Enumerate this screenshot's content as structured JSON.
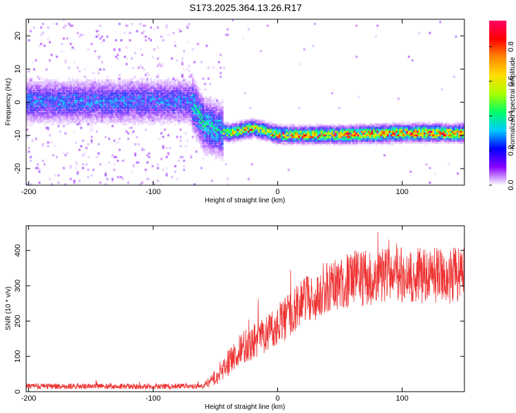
{
  "title": "S173.2025.364.13.26.R17",
  "chart_data": [
    {
      "type": "heatmap",
      "xlabel": "Height of straight line (km)",
      "ylabel": "Frequency (Hz)",
      "xlim": [
        -202,
        150
      ],
      "ylim": [
        -25,
        25
      ],
      "xticks": [
        -200,
        -100,
        0,
        100
      ],
      "yticks": [
        -20,
        -10,
        0,
        10,
        20
      ],
      "colorbar": {
        "label": "Normalized spectral amplitude",
        "range": [
          0,
          0.95
        ],
        "ticks": [
          0.0,
          0.2,
          0.4,
          0.6,
          0.8
        ],
        "colors": [
          "#ffffff",
          "#8800ff",
          "#0000ff",
          "#00ccff",
          "#00ff66",
          "#aaff00",
          "#ffdd00",
          "#ff8800",
          "#ff0000",
          "#ff0066"
        ]
      },
      "ridge": [
        {
          "x": -202,
          "y": 0
        },
        {
          "x": -70,
          "y": 0
        },
        {
          "x": -60,
          "y": -7
        },
        {
          "x": -40,
          "y": -9.5
        },
        {
          "x": -20,
          "y": -8
        },
        {
          "x": 0,
          "y": -10
        },
        {
          "x": 50,
          "y": -10
        },
        {
          "x": 100,
          "y": -9.5
        },
        {
          "x": 150,
          "y": -9.5
        }
      ]
    },
    {
      "type": "line",
      "xlabel": "Height of straight line (km)",
      "ylabel": "SNR (10 * v/v)",
      "xlim": [
        -202,
        150
      ],
      "ylim": [
        0,
        470
      ],
      "xticks": [
        -200,
        -100,
        0,
        100
      ],
      "yticks": [
        0,
        100,
        200,
        300,
        400
      ],
      "color": "#ee3333",
      "trend": [
        {
          "x": -202,
          "y": 15
        },
        {
          "x": -60,
          "y": 15
        },
        {
          "x": -50,
          "y": 40
        },
        {
          "x": -40,
          "y": 80
        },
        {
          "x": -30,
          "y": 120
        },
        {
          "x": -10,
          "y": 160
        },
        {
          "x": 0,
          "y": 190
        },
        {
          "x": 20,
          "y": 250
        },
        {
          "x": 40,
          "y": 300
        },
        {
          "x": 60,
          "y": 320
        },
        {
          "x": 80,
          "y": 325
        },
        {
          "x": 100,
          "y": 330
        },
        {
          "x": 150,
          "y": 330
        }
      ],
      "noise": [
        {
          "x": -202,
          "y": 8
        },
        {
          "x": -60,
          "y": 8
        },
        {
          "x": -40,
          "y": 40
        },
        {
          "x": -20,
          "y": 50
        },
        {
          "x": 20,
          "y": 70
        },
        {
          "x": 60,
          "y": 80
        },
        {
          "x": 150,
          "y": 80
        }
      ]
    }
  ]
}
